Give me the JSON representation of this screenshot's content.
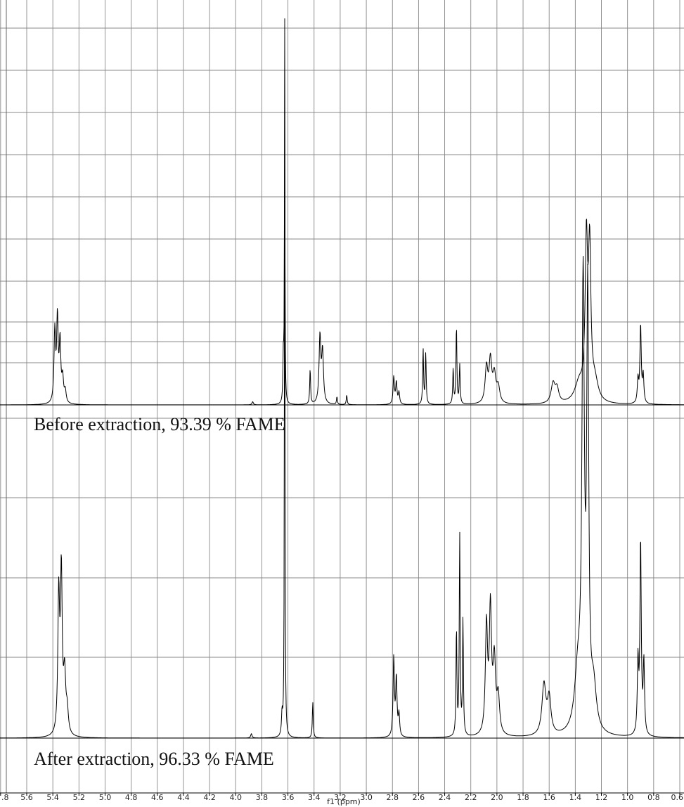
{
  "chart_data": {
    "type": "line",
    "xlabel": "f1 (ppm)",
    "xlim": [
      5.8,
      0.6
    ],
    "x_reversed": true,
    "tick_labels": [
      ".8",
      "5.6",
      "5.4",
      "5.2",
      "5.0",
      "4.8",
      "4.6",
      "4.4",
      "4.2",
      "4.0",
      "3.8",
      "3.6",
      "3.4",
      "3.2",
      "3.0",
      "2.8",
      "2.6",
      "2.4",
      "2.2",
      "2.0",
      "1.8",
      "1.6",
      "1.4",
      "1.2",
      "1.0",
      "0.8",
      "0.6"
    ],
    "grid": true,
    "series": [
      {
        "name": "Before extraction, 93.39 % FAME",
        "peaks": [
          {
            "ppm": 5.385,
            "h": 0.18,
            "w": 0.007
          },
          {
            "ppm": 5.365,
            "h": 0.21,
            "w": 0.007
          },
          {
            "ppm": 5.345,
            "h": 0.15,
            "w": 0.007
          },
          {
            "ppm": 5.325,
            "h": 0.06,
            "w": 0.008
          },
          {
            "ppm": 5.305,
            "h": 0.03,
            "w": 0.008
          },
          {
            "ppm": 3.87,
            "h": 0.008,
            "w": 0.006
          },
          {
            "ppm": 3.625,
            "h": 0.98,
            "w": 0.0022
          },
          {
            "ppm": 3.635,
            "h": 0.12,
            "w": 0.004
          },
          {
            "ppm": 3.43,
            "h": 0.09,
            "w": 0.004
          },
          {
            "ppm": 3.355,
            "h": 0.17,
            "w": 0.008
          },
          {
            "ppm": 3.335,
            "h": 0.13,
            "w": 0.008
          },
          {
            "ppm": 3.225,
            "h": 0.02,
            "w": 0.004
          },
          {
            "ppm": 3.15,
            "h": 0.025,
            "w": 0.004
          },
          {
            "ppm": 2.79,
            "h": 0.07,
            "w": 0.006
          },
          {
            "ppm": 2.77,
            "h": 0.055,
            "w": 0.006
          },
          {
            "ppm": 2.75,
            "h": 0.03,
            "w": 0.006
          },
          {
            "ppm": 2.565,
            "h": 0.14,
            "w": 0.004
          },
          {
            "ppm": 2.545,
            "h": 0.13,
            "w": 0.004
          },
          {
            "ppm": 2.335,
            "h": 0.09,
            "w": 0.004
          },
          {
            "ppm": 2.31,
            "h": 0.2,
            "w": 0.004
          },
          {
            "ppm": 2.285,
            "h": 0.1,
            "w": 0.004
          },
          {
            "ppm": 2.08,
            "h": 0.09,
            "w": 0.012
          },
          {
            "ppm": 2.05,
            "h": 0.105,
            "w": 0.012
          },
          {
            "ppm": 2.02,
            "h": 0.07,
            "w": 0.014
          },
          {
            "ppm": 1.99,
            "h": 0.04,
            "w": 0.014
          },
          {
            "ppm": 1.57,
            "h": 0.05,
            "w": 0.018
          },
          {
            "ppm": 1.54,
            "h": 0.035,
            "w": 0.016
          },
          {
            "ppm": 1.37,
            "h": 0.05,
            "w": 0.04
          },
          {
            "ppm": 1.315,
            "h": 0.39,
            "w": 0.011
          },
          {
            "ppm": 1.29,
            "h": 0.37,
            "w": 0.011
          },
          {
            "ppm": 1.25,
            "h": 0.05,
            "w": 0.03
          },
          {
            "ppm": 0.92,
            "h": 0.06,
            "w": 0.006
          },
          {
            "ppm": 0.9,
            "h": 0.2,
            "w": 0.006
          },
          {
            "ppm": 0.88,
            "h": 0.07,
            "w": 0.006
          }
        ]
      },
      {
        "name": "After extraction, 96.33 % FAME",
        "peaks": [
          {
            "ppm": 5.355,
            "h": 0.19,
            "w": 0.008
          },
          {
            "ppm": 5.335,
            "h": 0.22,
            "w": 0.008
          },
          {
            "ppm": 5.31,
            "h": 0.08,
            "w": 0.01
          },
          {
            "ppm": 5.29,
            "h": 0.03,
            "w": 0.01
          },
          {
            "ppm": 3.88,
            "h": 0.006,
            "w": 0.006
          },
          {
            "ppm": 3.625,
            "h": 0.97,
            "w": 0.0025
          },
          {
            "ppm": 3.645,
            "h": 0.03,
            "w": 0.005
          },
          {
            "ppm": 3.41,
            "h": 0.05,
            "w": 0.004
          },
          {
            "ppm": 2.79,
            "h": 0.11,
            "w": 0.006
          },
          {
            "ppm": 2.77,
            "h": 0.08,
            "w": 0.006
          },
          {
            "ppm": 2.75,
            "h": 0.03,
            "w": 0.006
          },
          {
            "ppm": 2.31,
            "h": 0.15,
            "w": 0.004
          },
          {
            "ppm": 2.285,
            "h": 0.28,
            "w": 0.004
          },
          {
            "ppm": 2.26,
            "h": 0.16,
            "w": 0.004
          },
          {
            "ppm": 2.08,
            "h": 0.15,
            "w": 0.01
          },
          {
            "ppm": 2.05,
            "h": 0.17,
            "w": 0.01
          },
          {
            "ppm": 2.02,
            "h": 0.1,
            "w": 0.012
          },
          {
            "ppm": 1.99,
            "h": 0.05,
            "w": 0.012
          },
          {
            "ppm": 1.64,
            "h": 0.07,
            "w": 0.018
          },
          {
            "ppm": 1.6,
            "h": 0.05,
            "w": 0.016
          },
          {
            "ppm": 1.38,
            "h": 0.08,
            "w": 0.03
          },
          {
            "ppm": 1.34,
            "h": 0.6,
            "w": 0.011
          },
          {
            "ppm": 1.305,
            "h": 0.58,
            "w": 0.009
          },
          {
            "ppm": 1.26,
            "h": 0.06,
            "w": 0.025
          },
          {
            "ppm": 0.92,
            "h": 0.1,
            "w": 0.006
          },
          {
            "ppm": 0.9,
            "h": 0.27,
            "w": 0.006
          },
          {
            "ppm": 0.875,
            "h": 0.1,
            "w": 0.006
          }
        ]
      }
    ]
  }
}
